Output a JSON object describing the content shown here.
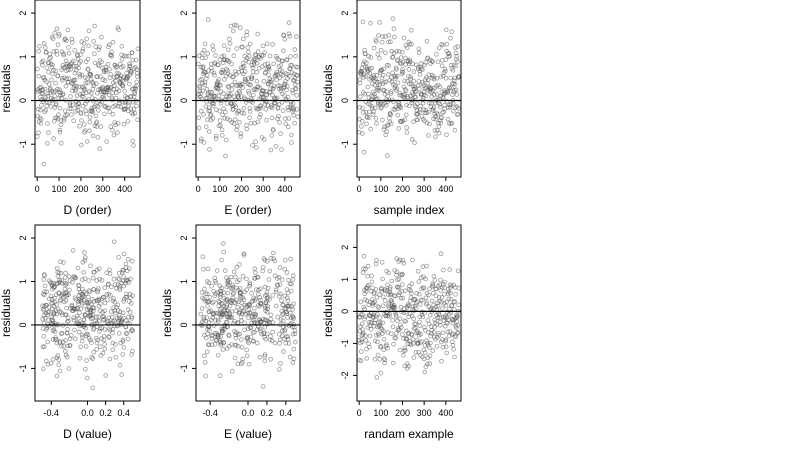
{
  "chart_data": [
    {
      "id": "d-order",
      "type": "scatter",
      "xlabel": "D (order)",
      "ylabel": "residuals",
      "xlim": [
        -10,
        470
      ],
      "ylim": [
        -1.75,
        2.3
      ],
      "xticks": [
        0,
        100,
        200,
        300,
        400
      ],
      "xtick_labels": [
        "0",
        "100",
        "200",
        "300",
        "400"
      ],
      "yticks": [
        -1,
        0,
        1,
        2
      ],
      "ytick_labels": [
        "-1",
        "0",
        "1",
        "2"
      ],
      "reference_line_y": 0,
      "n_points": 460,
      "x_mode": "index",
      "x_from": 0,
      "x_to": 460,
      "y_range": [
        -1.6,
        2.2
      ],
      "seed": 11
    },
    {
      "id": "e-order",
      "type": "scatter",
      "xlabel": "E (order)",
      "ylabel": "residuals",
      "xlim": [
        -10,
        470
      ],
      "ylim": [
        -1.75,
        2.3
      ],
      "xticks": [
        0,
        100,
        200,
        300,
        400
      ],
      "xtick_labels": [
        "0",
        "100",
        "200",
        "300",
        "400"
      ],
      "yticks": [
        -1,
        0,
        1,
        2
      ],
      "ytick_labels": [
        "-1",
        "0",
        "1",
        "2"
      ],
      "reference_line_y": 0,
      "n_points": 460,
      "x_mode": "index",
      "x_from": 0,
      "x_to": 460,
      "y_range": [
        -1.6,
        2.2
      ],
      "seed": 23
    },
    {
      "id": "sample-index",
      "type": "scatter",
      "xlabel": "sample index",
      "ylabel": "residuals",
      "xlim": [
        -10,
        470
      ],
      "ylim": [
        -1.75,
        2.3
      ],
      "xticks": [
        0,
        100,
        200,
        300,
        400
      ],
      "xtick_labels": [
        "0",
        "100",
        "200",
        "300",
        "400"
      ],
      "yticks": [
        -1,
        0,
        1,
        2
      ],
      "ytick_labels": [
        "-1",
        "0",
        "1",
        "2"
      ],
      "reference_line_y": 0,
      "n_points": 460,
      "x_mode": "index",
      "x_from": 0,
      "x_to": 460,
      "y_range": [
        -1.6,
        2.2
      ],
      "seed": 37
    },
    {
      "id": "d-value",
      "type": "scatter",
      "xlabel": "D (value)",
      "ylabel": "residuals",
      "xlim": [
        -0.58,
        0.58
      ],
      "ylim": [
        -1.75,
        2.3
      ],
      "xticks": [
        -0.4,
        0.0,
        0.2,
        0.4
      ],
      "xtick_labels": [
        "-0.4",
        "0.0",
        "0.2",
        "0.4"
      ],
      "yticks": [
        -1,
        0,
        1,
        2
      ],
      "ytick_labels": [
        "-1",
        "0",
        "1",
        "2"
      ],
      "reference_line_y": 0,
      "n_points": 460,
      "x_mode": "uniform",
      "x_from": -0.5,
      "x_to": 0.5,
      "y_range": [
        -1.6,
        2.2
      ],
      "seed": 41
    },
    {
      "id": "e-value",
      "type": "scatter",
      "xlabel": "E (value)",
      "ylabel": "residuals",
      "xlim": [
        -0.55,
        0.55
      ],
      "ylim": [
        -1.75,
        2.3
      ],
      "xticks": [
        -0.4,
        0.0,
        0.2,
        0.4
      ],
      "xtick_labels": [
        "-0.4",
        "0.0",
        "0.2",
        "0.4"
      ],
      "yticks": [
        -1,
        0,
        1,
        2
      ],
      "ytick_labels": [
        "-1",
        "0",
        "1",
        "2"
      ],
      "reference_line_y": 0,
      "n_points": 460,
      "x_mode": "uniform",
      "x_from": -0.5,
      "x_to": 0.5,
      "y_range": [
        -1.6,
        2.2
      ],
      "seed": 53
    },
    {
      "id": "randam-example",
      "type": "scatter",
      "xlabel": "randam example",
      "ylabel": "residuals",
      "xlim": [
        -10,
        470
      ],
      "ylim": [
        -2.8,
        2.7
      ],
      "xticks": [
        0,
        100,
        200,
        300,
        400
      ],
      "xtick_labels": [
        "0",
        "100",
        "200",
        "300",
        "400"
      ],
      "yticks": [
        -2,
        -1,
        0,
        1,
        2
      ],
      "ytick_labels": [
        "-2",
        "-1",
        "0",
        "1",
        "2"
      ],
      "reference_line_y": 0,
      "n_points": 460,
      "x_mode": "index",
      "x_from": 0,
      "x_to": 460,
      "y_range": [
        -2.6,
        2.5
      ],
      "seed": 67
    }
  ]
}
